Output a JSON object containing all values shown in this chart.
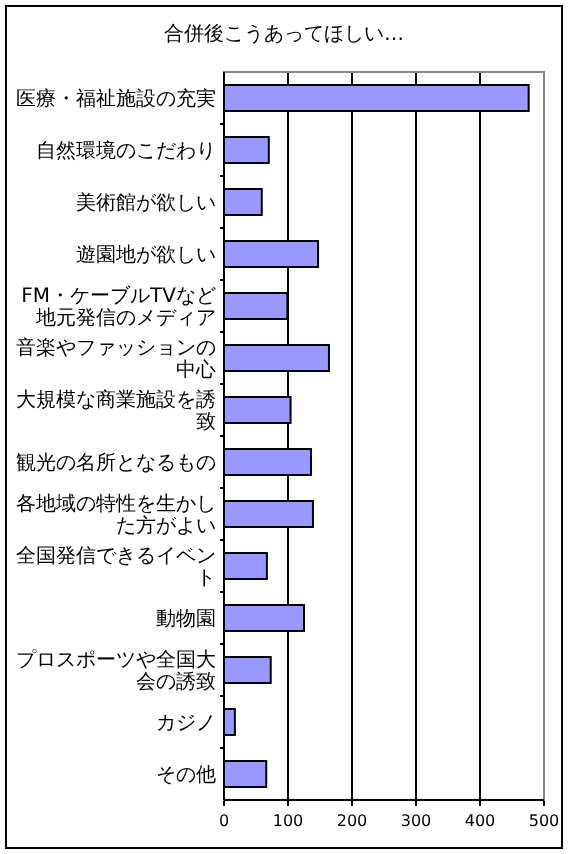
{
  "chart_data": {
    "type": "bar",
    "orientation": "horizontal",
    "title": "合併後こうあってほしい…",
    "categories": [
      "医療・福祉施設の充実",
      "自然環境のこだわり",
      "美術館が欲しい",
      "遊園地が欲しい",
      "FM・ケーブルTVなど地元発信のメディア",
      "音楽やファッションの中心",
      "大規模な商業施設を誘致",
      "観光の名所となるもの",
      "各地域の特性を生かした方がよい",
      "全国発信できるイベント",
      "動物園",
      "プロスポーツや全国大会の誘致",
      "カジノ",
      "その他"
    ],
    "values": [
      476,
      70,
      59,
      147,
      99,
      164,
      104,
      136,
      139,
      67,
      125,
      73,
      17,
      66
    ],
    "color": "#9999ff",
    "xlim": [
      0,
      500
    ],
    "xticks": [
      0,
      100,
      200,
      300,
      400,
      500
    ],
    "grid": "x"
  }
}
